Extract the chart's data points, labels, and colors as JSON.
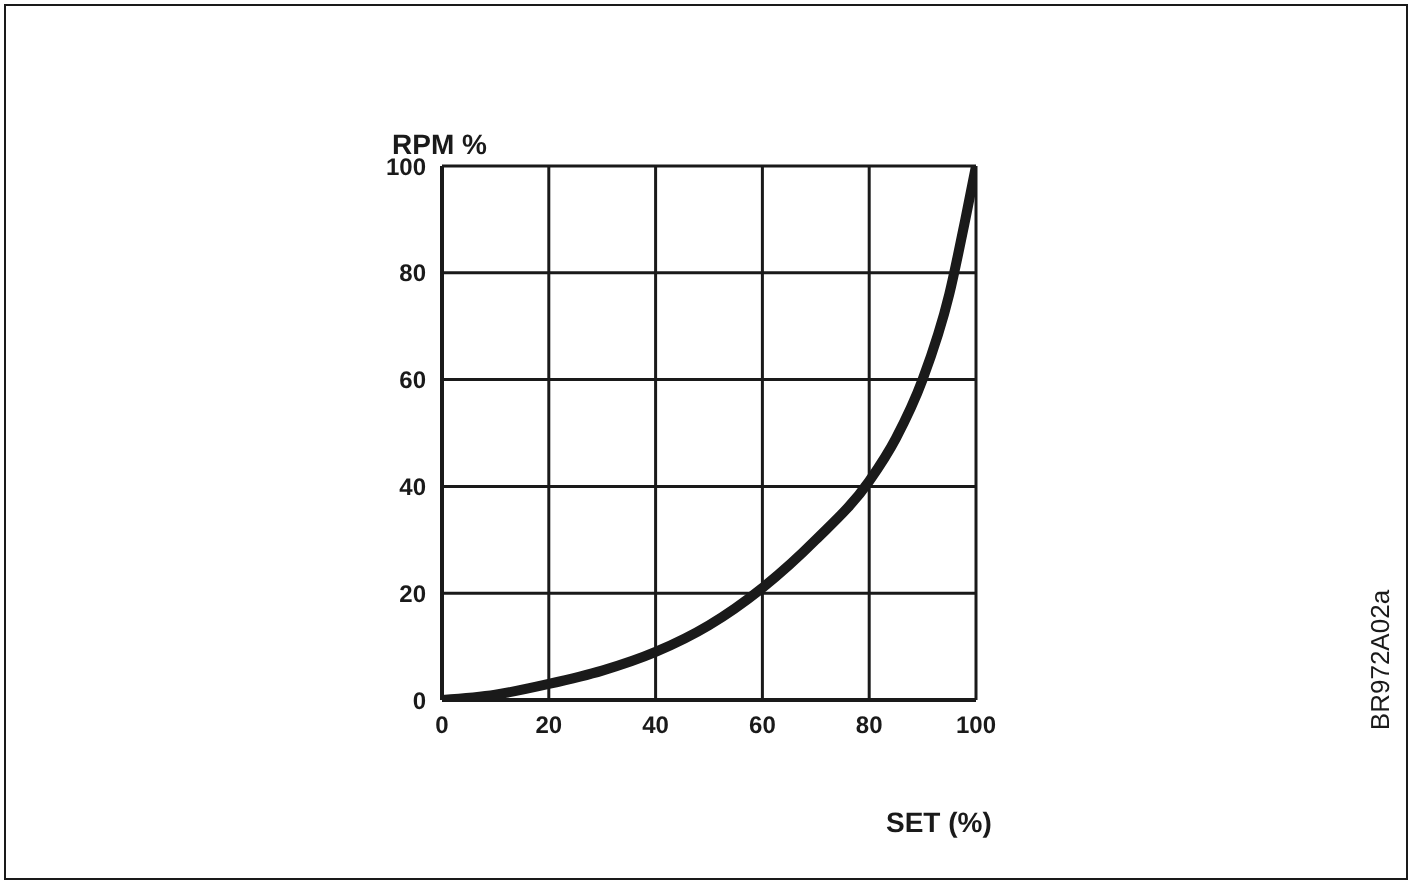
{
  "chart_data": {
    "type": "line",
    "title": "RPM %",
    "xlabel": "SET (%)",
    "annotations": [
      "BR972A02a"
    ],
    "x": [
      0,
      10,
      20,
      30,
      40,
      50,
      60,
      70,
      80,
      85,
      90,
      95,
      98,
      100
    ],
    "series": [
      {
        "color": "#1a1a1a",
        "values": [
          0,
          1,
          3,
          5.5,
          9,
          14,
          21,
          30,
          41,
          49,
          60,
          76,
          90,
          100
        ]
      }
    ],
    "xlim": [
      0,
      100
    ],
    "ylim": [
      0,
      100
    ],
    "xticks": [
      0,
      20,
      40,
      60,
      80,
      100
    ],
    "yticks": [
      0,
      20,
      40,
      60,
      80,
      100
    ],
    "grid": true,
    "legend": false,
    "marker": "none",
    "line_style": "solid"
  }
}
